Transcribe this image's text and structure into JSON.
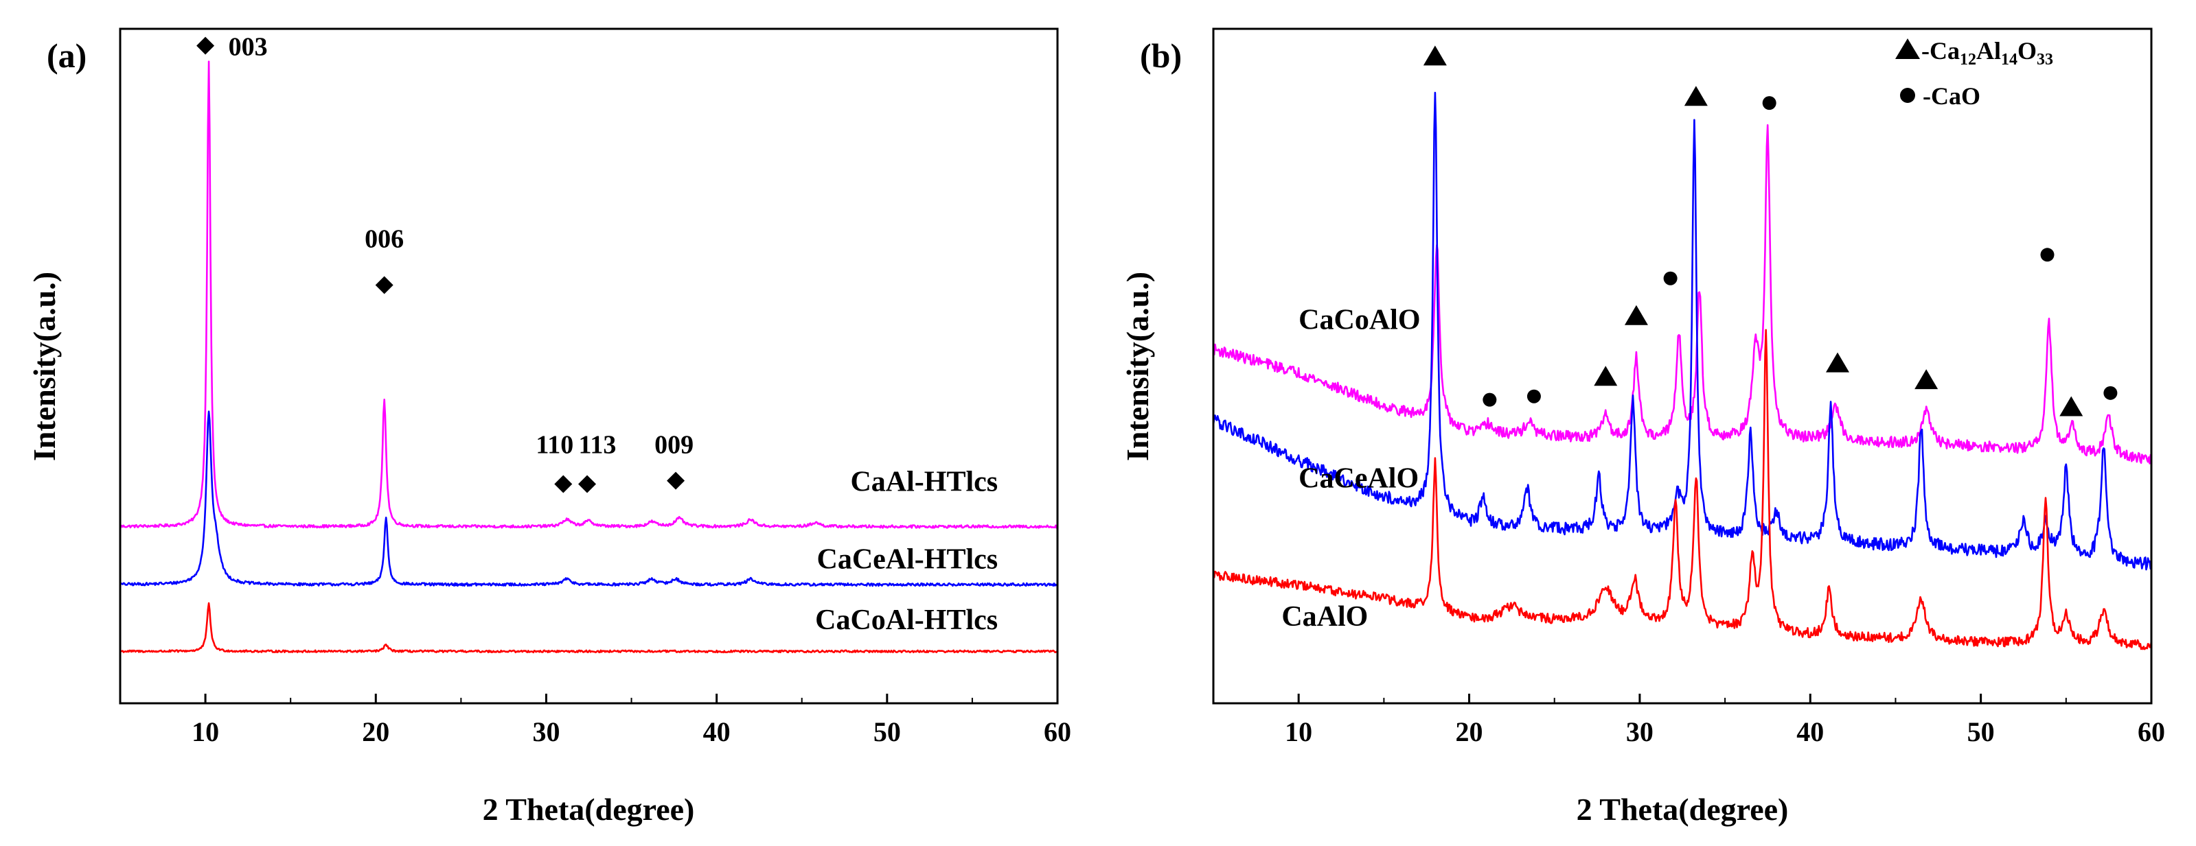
{
  "chart_data": [
    {
      "id": "a",
      "type": "line",
      "panel_label": "(a)",
      "xlabel": "2 Theta(degree)",
      "ylabel": "Intensity(a.u.)",
      "xlim": [
        5,
        60
      ],
      "ylim": [
        0,
        1
      ],
      "x_ticks": [
        10,
        20,
        30,
        40,
        50,
        60
      ],
      "x_tick_labels": [
        "10",
        "20",
        "30",
        "40",
        "50",
        "60"
      ],
      "grid": false,
      "series": [
        {
          "name": "CaAl-HTlcs",
          "color": "#ff00ff",
          "baseline": 0.262,
          "noise": 0.002,
          "peaks": [
            [
              10.2,
              0.69,
              0.12
            ],
            [
              20.5,
              0.19,
              0.13
            ],
            [
              31.2,
              0.01,
              0.3
            ],
            [
              32.5,
              0.008,
              0.3
            ],
            [
              36.2,
              0.007,
              0.3
            ],
            [
              37.8,
              0.012,
              0.3
            ],
            [
              42.0,
              0.01,
              0.3
            ],
            [
              45.8,
              0.006,
              0.3
            ]
          ]
        },
        {
          "name": "CaCeAl-HTlcs",
          "color": "#0000ff",
          "baseline": 0.176,
          "noise": 0.002,
          "peaks": [
            [
              10.2,
              0.24,
              0.18
            ],
            [
              10.6,
              0.05,
              0.3
            ],
            [
              20.6,
              0.1,
              0.13
            ],
            [
              31.2,
              0.008,
              0.3
            ],
            [
              36.2,
              0.008,
              0.3
            ],
            [
              37.6,
              0.008,
              0.3
            ],
            [
              42.0,
              0.008,
              0.3
            ]
          ]
        },
        {
          "name": "CaCoAl-HTlcs",
          "color": "#ff0000",
          "baseline": 0.077,
          "noise": 0.0015,
          "peaks": [
            [
              10.2,
              0.07,
              0.13
            ],
            [
              20.6,
              0.01,
              0.15
            ]
          ]
        }
      ],
      "labels": [
        {
          "text": "CaAl-HTlcs",
          "x": 56.5,
          "y": 0.315
        },
        {
          "text": "CaCeAl-HTlcs",
          "x": 56.5,
          "y": 0.2
        },
        {
          "text": "CaCoAl-HTlcs",
          "x": 56.5,
          "y": 0.11
        }
      ],
      "annotations": [
        {
          "marker": "diamond",
          "x": 10.0,
          "y": 0.975,
          "text": "003",
          "text_x": 12.5,
          "text_y": 0.975
        },
        {
          "marker": "diamond",
          "x": 20.5,
          "y": 0.62,
          "text": "006",
          "text_x": 20.5,
          "text_y": 0.69
        },
        {
          "marker": "diamond",
          "x": 31.0,
          "y": 0.325,
          "text": "110",
          "text_x": 30.5,
          "text_y": 0.385
        },
        {
          "marker": "diamond",
          "x": 32.4,
          "y": 0.325,
          "text": "113",
          "text_x": 33.0,
          "text_y": 0.385
        },
        {
          "marker": "diamond",
          "x": 37.6,
          "y": 0.33,
          "text": "009",
          "text_x": 37.5,
          "text_y": 0.385
        }
      ]
    },
    {
      "id": "b",
      "type": "line",
      "panel_label": "(b)",
      "xlabel": "2 Theta(degree)",
      "ylabel": "Intensity(a.u.)",
      "xlim": [
        5,
        60
      ],
      "ylim": [
        0,
        1
      ],
      "x_ticks": [
        10,
        20,
        30,
        40,
        50,
        60
      ],
      "x_tick_labels": [
        "10",
        "20",
        "30",
        "40",
        "50",
        "60"
      ],
      "grid": false,
      "legend": {
        "position": "top-right",
        "entries": [
          {
            "marker": "triangle",
            "prefix": "-Ca",
            "s1": "12",
            "m1": "Al",
            "s2": "14",
            "m2": "O",
            "s3": "33"
          },
          {
            "marker": "circle",
            "prefix": "-CaO"
          }
        ]
      },
      "series": [
        {
          "name": "CaCoAlO",
          "color": "#ff00ff",
          "baseline": [
            [
              5,
              0.525
            ],
            [
              10,
              0.49
            ],
            [
              15,
              0.44
            ],
            [
              20,
              0.4
            ],
            [
              30,
              0.39
            ],
            [
              40,
              0.39
            ],
            [
              50,
              0.38
            ],
            [
              60,
              0.36
            ]
          ],
          "noise": 0.008,
          "peaks": [
            [
              18.1,
              0.27,
              0.18
            ],
            [
              21.1,
              0.015,
              0.3
            ],
            [
              23.5,
              0.02,
              0.3
            ],
            [
              28.0,
              0.035,
              0.25
            ],
            [
              29.8,
              0.12,
              0.2
            ],
            [
              32.3,
              0.15,
              0.2
            ],
            [
              33.5,
              0.22,
              0.18
            ],
            [
              36.8,
              0.12,
              0.25
            ],
            [
              37.5,
              0.445,
              0.18
            ],
            [
              41.5,
              0.05,
              0.3
            ],
            [
              46.8,
              0.05,
              0.3
            ],
            [
              54.0,
              0.19,
              0.2
            ],
            [
              55.4,
              0.04,
              0.25
            ],
            [
              57.5,
              0.06,
              0.25
            ]
          ]
        },
        {
          "name": "CaCeAlO",
          "color": "#0000ff",
          "baseline": [
            [
              5,
              0.42
            ],
            [
              10,
              0.36
            ],
            [
              15,
              0.305
            ],
            [
              20,
              0.265
            ],
            [
              30,
              0.25
            ],
            [
              40,
              0.24
            ],
            [
              50,
              0.225
            ],
            [
              60,
              0.205
            ]
          ],
          "noise": 0.009,
          "peaks": [
            [
              18.0,
              0.63,
              0.15
            ],
            [
              20.8,
              0.04,
              0.2
            ],
            [
              23.4,
              0.06,
              0.2
            ],
            [
              27.6,
              0.08,
              0.2
            ],
            [
              29.6,
              0.2,
              0.18
            ],
            [
              32.2,
              0.05,
              0.3
            ],
            [
              33.2,
              0.61,
              0.15
            ],
            [
              36.5,
              0.16,
              0.18
            ],
            [
              38.0,
              0.04,
              0.25
            ],
            [
              41.2,
              0.2,
              0.18
            ],
            [
              46.5,
              0.18,
              0.18
            ],
            [
              52.5,
              0.05,
              0.25
            ],
            [
              53.8,
              0.05,
              0.25
            ],
            [
              55.0,
              0.13,
              0.2
            ],
            [
              57.2,
              0.17,
              0.2
            ]
          ]
        },
        {
          "name": "CaAlO",
          "color": "#ff0000",
          "baseline": [
            [
              5,
              0.19
            ],
            [
              10,
              0.175
            ],
            [
              15,
              0.155
            ],
            [
              20,
              0.125
            ],
            [
              30,
              0.12
            ],
            [
              40,
              0.1
            ],
            [
              50,
              0.09
            ],
            [
              60,
              0.085
            ]
          ],
          "noise": 0.007,
          "peaks": [
            [
              18.0,
              0.22,
              0.15
            ],
            [
              22.5,
              0.02,
              0.6
            ],
            [
              28.0,
              0.05,
              0.5
            ],
            [
              29.7,
              0.06,
              0.25
            ],
            [
              32.1,
              0.18,
              0.18
            ],
            [
              33.3,
              0.22,
              0.18
            ],
            [
              36.6,
              0.1,
              0.2
            ],
            [
              37.4,
              0.44,
              0.15
            ],
            [
              41.1,
              0.07,
              0.2
            ],
            [
              46.5,
              0.06,
              0.3
            ],
            [
              53.8,
              0.21,
              0.18
            ],
            [
              55.0,
              0.04,
              0.25
            ],
            [
              57.2,
              0.05,
              0.3
            ]
          ]
        }
      ],
      "labels": [
        {
          "text": "CaCoAlO",
          "x": 10.0,
          "y": 0.555
        },
        {
          "text": "CaCeAlO",
          "x": 10.0,
          "y": 0.32
        },
        {
          "text": "CaAlO",
          "x": 9.0,
          "y": 0.115
        }
      ],
      "markers": [
        {
          "marker": "triangle",
          "x": 18.0,
          "y": 0.96
        },
        {
          "marker": "triangle",
          "x": 33.3,
          "y": 0.9
        },
        {
          "marker": "circle",
          "x": 37.6,
          "y": 0.89
        },
        {
          "marker": "circle",
          "x": 31.8,
          "y": 0.63
        },
        {
          "marker": "triangle",
          "x": 29.8,
          "y": 0.575
        },
        {
          "marker": "triangle",
          "x": 28.0,
          "y": 0.485
        },
        {
          "marker": "circle",
          "x": 21.2,
          "y": 0.45
        },
        {
          "marker": "circle",
          "x": 23.8,
          "y": 0.455
        },
        {
          "marker": "triangle",
          "x": 41.6,
          "y": 0.505
        },
        {
          "marker": "triangle",
          "x": 46.8,
          "y": 0.48
        },
        {
          "marker": "circle",
          "x": 53.9,
          "y": 0.665
        },
        {
          "marker": "triangle",
          "x": 55.3,
          "y": 0.44
        },
        {
          "marker": "circle",
          "x": 57.6,
          "y": 0.46
        }
      ]
    }
  ]
}
